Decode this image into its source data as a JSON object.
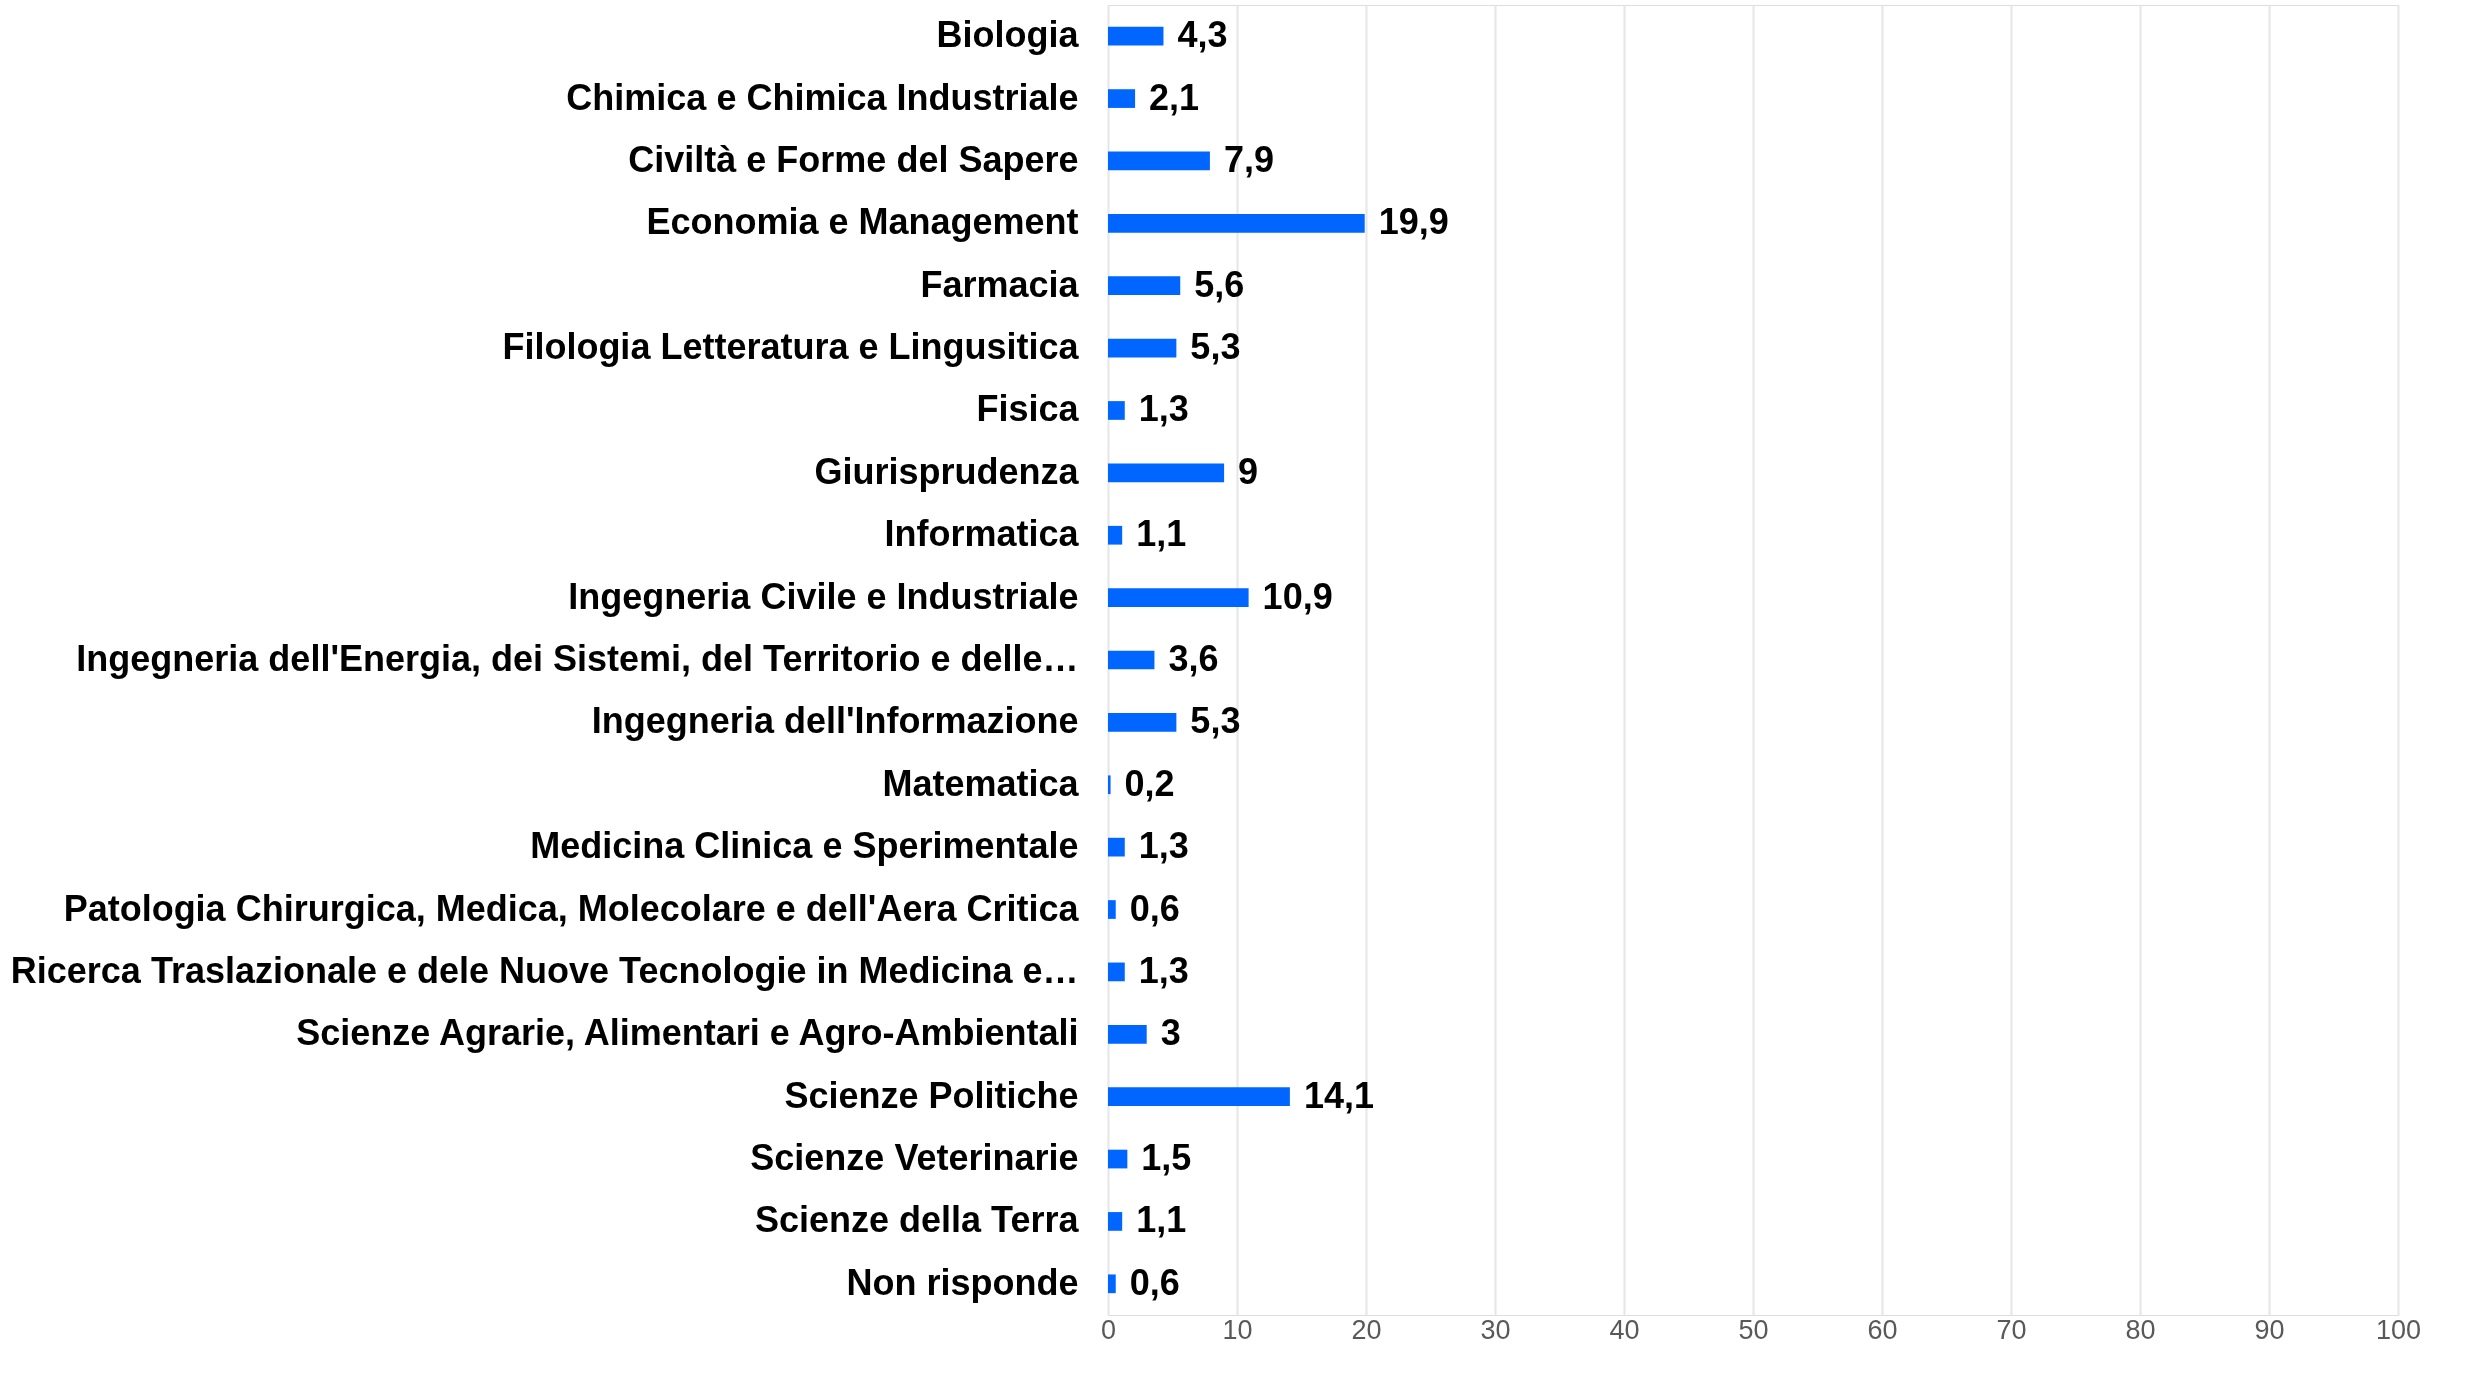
{
  "chart_data": {
    "type": "bar",
    "orientation": "horizontal",
    "categories": [
      "Biologia",
      "Chimica e Chimica Industriale",
      "Civiltà e Forme del Sapere",
      "Economia e Management",
      "Farmacia",
      "Filologia Letteratura e Lingusitica",
      "Fisica",
      "Giurisprudenza",
      "Informatica",
      "Ingegneria Civile e Industriale",
      "Ingegneria dell'Energia, dei Sistemi, del Territorio e delle…",
      "Ingegneria dell'Informazione",
      "Matematica",
      "Medicina Clinica e Sperimentale",
      "Patologia Chirurgica, Medica, Molecolare e dell'Aera Critica",
      "Ricerca Traslazionale e dele Nuove Tecnologie in Medicina e…",
      "Scienze Agrarie, Alimentari e Agro-Ambientali",
      "Scienze Politiche",
      "Scienze Veterinarie",
      "Scienze della Terra",
      "Non risponde"
    ],
    "values": [
      4.3,
      2.1,
      7.9,
      19.9,
      5.6,
      5.3,
      1.3,
      9,
      1.1,
      10.9,
      3.6,
      5.3,
      0.2,
      1.3,
      0.6,
      1.3,
      3,
      14.1,
      1.5,
      1.1,
      0.6
    ],
    "value_labels": [
      "4,3",
      "2,1",
      "7,9",
      "19,9",
      "5,6",
      "5,3",
      "1,3",
      "9",
      "1,1",
      "10,9",
      "3,6",
      "5,3",
      "0,2",
      "1,3",
      "0,6",
      "1,3",
      "3",
      "14,1",
      "1,5",
      "1,1",
      "0,6"
    ],
    "color": "#0066ff",
    "xlim": [
      0,
      100
    ],
    "xticks": [
      0,
      10,
      20,
      30,
      40,
      50,
      60,
      70,
      80,
      90,
      100
    ],
    "grid": "x"
  }
}
